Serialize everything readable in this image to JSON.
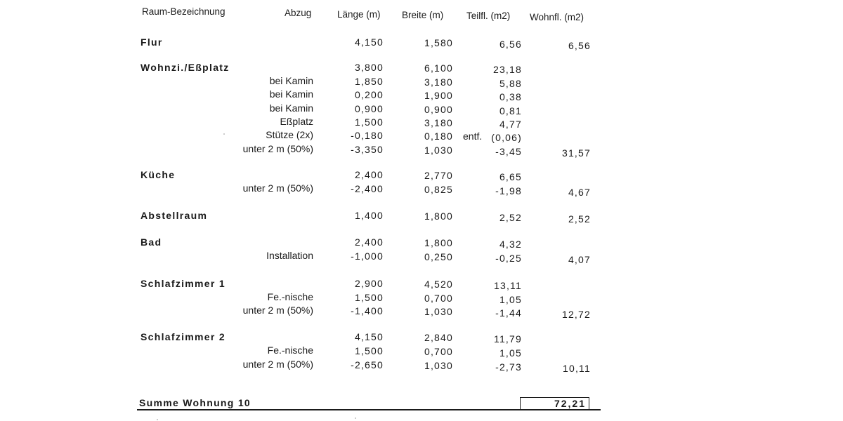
{
  "header": {
    "room": "Raum-Bezeichnung",
    "deduction": "Abzug",
    "length": "Länge (m)",
    "width": "Breite  (m)",
    "partial_area": "Teilfl.  (m2)",
    "living_area": "Wohnfl.  (m2)"
  },
  "rows": [
    {
      "room": "Flur",
      "label": "",
      "length": "4,150",
      "width": "1,580",
      "note": "",
      "partial": "6,56",
      "total": "6,56"
    },
    {
      "room": "Wohnzi./Eßplatz",
      "label": "",
      "length": "3,800",
      "width": "6,100",
      "note": "",
      "partial": "23,18",
      "total": ""
    },
    {
      "room": "",
      "label": "bei Kamin",
      "length": "1,850",
      "width": "3,180",
      "note": "",
      "partial": "5,88",
      "total": ""
    },
    {
      "room": "",
      "label": "bei Kamin",
      "length": "0,200",
      "width": "1,900",
      "note": "",
      "partial": "0,38",
      "total": ""
    },
    {
      "room": "",
      "label": "bei Kamin",
      "length": "0,900",
      "width": "0,900",
      "note": "",
      "partial": "0,81",
      "total": ""
    },
    {
      "room": "",
      "label": "Eßplatz",
      "length": "1,500",
      "width": "3,180",
      "note": "",
      "partial": "4,77",
      "total": ""
    },
    {
      "room": "",
      "label": "Stütze  (2x)",
      "length": "-0,180",
      "width": "0,180",
      "note": "entf.",
      "partial": "(0,06)",
      "total": ""
    },
    {
      "room": "",
      "label": "unter 2 m     (50%)",
      "length": "-3,350",
      "width": "1,030",
      "note": "",
      "partial": "-3,45",
      "total": "31,57"
    },
    {
      "room": "Küche",
      "label": "",
      "length": "2,400",
      "width": "2,770",
      "note": "",
      "partial": "6,65",
      "total": ""
    },
    {
      "room": "",
      "label": "unter 2 m     (50%)",
      "length": "-2,400",
      "width": "0,825",
      "note": "",
      "partial": "-1,98",
      "total": "4,67"
    },
    {
      "room": "Abstellraum",
      "label": "",
      "length": "1,400",
      "width": "1,800",
      "note": "",
      "partial": "2,52",
      "total": "2,52"
    },
    {
      "room": "Bad",
      "label": "",
      "length": "2,400",
      "width": "1,800",
      "note": "",
      "partial": "4,32",
      "total": ""
    },
    {
      "room": "",
      "label": "Installation",
      "length": "-1,000",
      "width": "0,250",
      "note": "",
      "partial": "-0,25",
      "total": "4,07"
    },
    {
      "room": "Schlafzimmer   1",
      "label": "",
      "length": "2,900",
      "width": "4,520",
      "note": "",
      "partial": "13,11",
      "total": ""
    },
    {
      "room": "",
      "label": "Fe.-nische",
      "length": "1,500",
      "width": "0,700",
      "note": "",
      "partial": "1,05",
      "total": ""
    },
    {
      "room": "",
      "label": "unter 2 m     (50%)",
      "length": "-1,400",
      "width": "1,030",
      "note": "",
      "partial": "-1,44",
      "total": "12,72"
    },
    {
      "room": "Schlafzimmer   2",
      "label": "",
      "length": "4,150",
      "width": "2,840",
      "note": "",
      "partial": "11,79",
      "total": ""
    },
    {
      "room": "",
      "label": "Fe.-nische",
      "length": "1,500",
      "width": "0,700",
      "note": "",
      "partial": "1,05",
      "total": ""
    },
    {
      "room": "",
      "label": "unter 2 m     (50%)",
      "length": "-2,650",
      "width": "1,030",
      "note": "",
      "partial": "-2,73",
      "total": "10,11"
    }
  ],
  "summary": {
    "label": "Summe  Wohnung  10",
    "total": "72,21"
  }
}
